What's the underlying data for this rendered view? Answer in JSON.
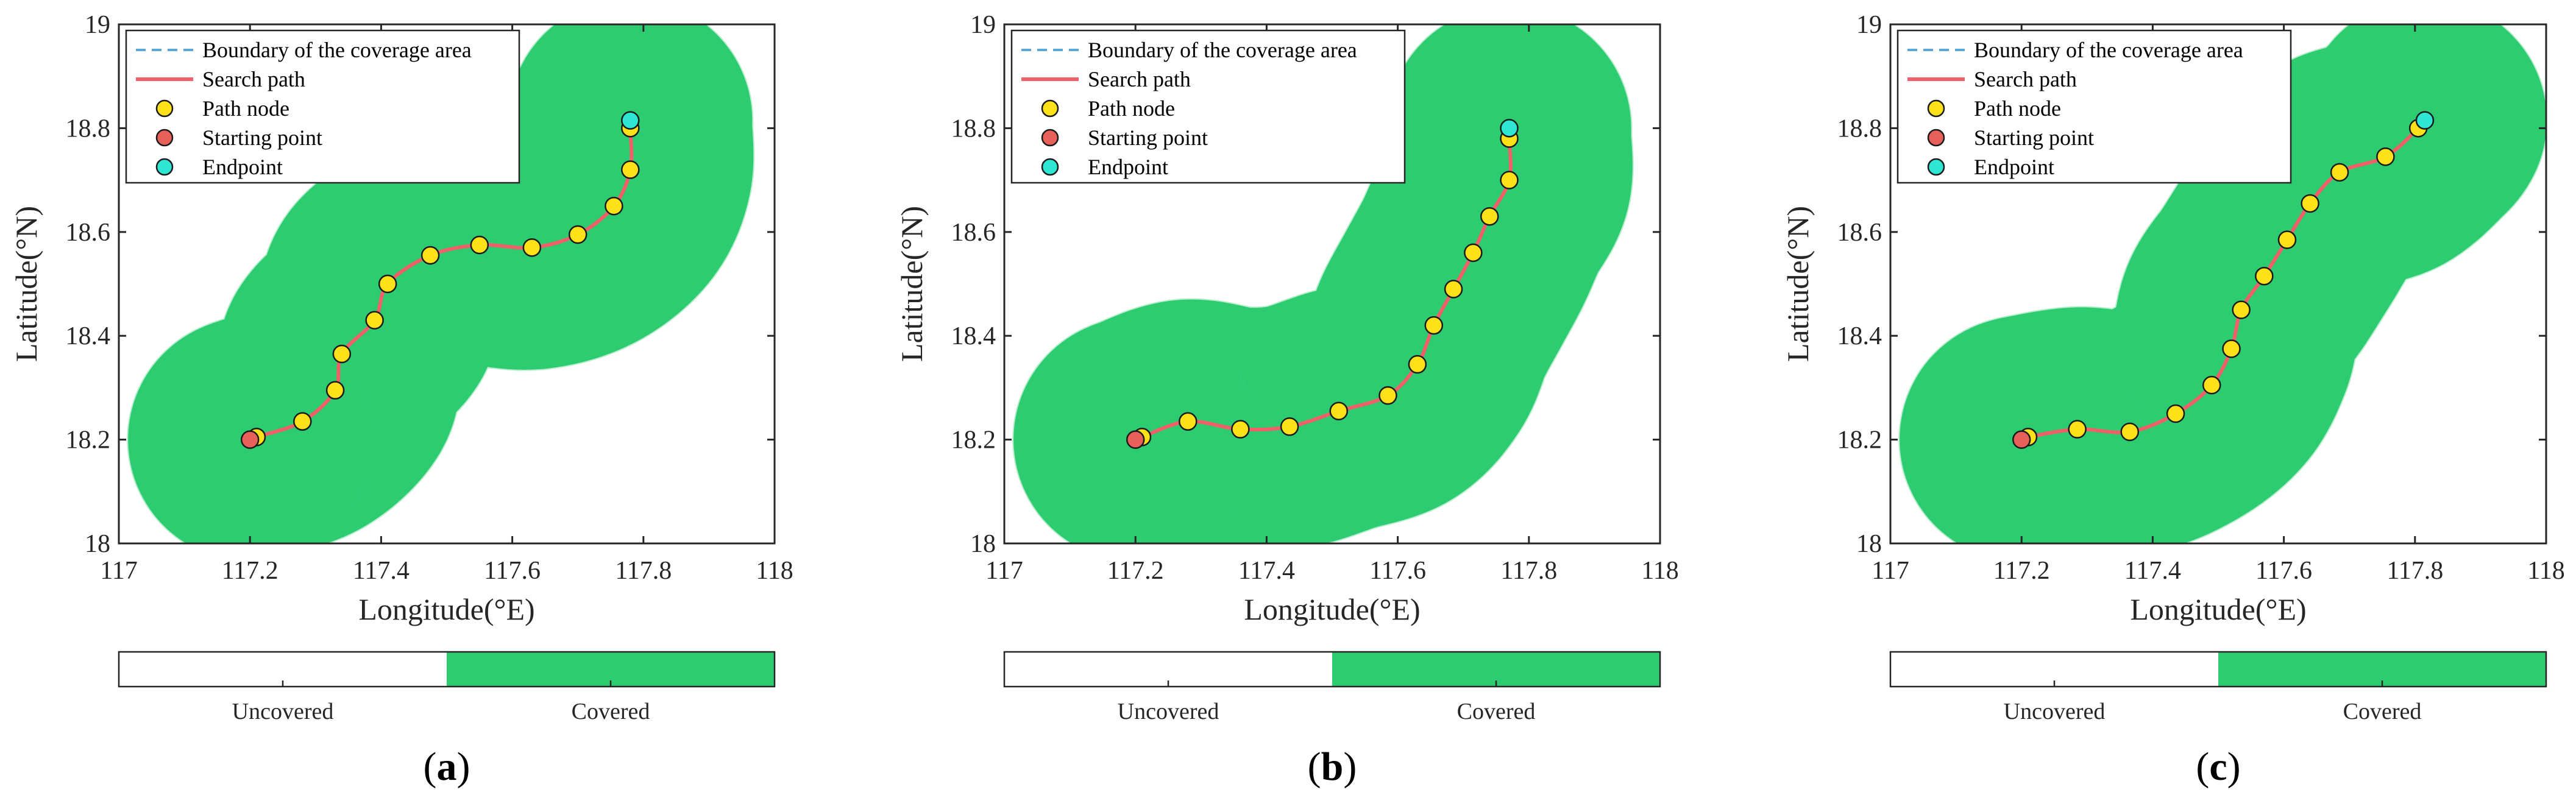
{
  "colors": {
    "covered": "#2ecc71",
    "uncovered": "#ffffff",
    "search_path": "#f0606a",
    "path_node": "#ffe11a",
    "starting_point": "#e8605a",
    "endpoint": "#2ee6d2",
    "boundary": "#5ba8d6"
  },
  "legend_labels": {
    "boundary": "Boundary of the coverage area",
    "search_path": "Search path",
    "path_node": "Path node",
    "starting_point": "Starting point",
    "endpoint": "Endpoint"
  },
  "colorbar_labels": {
    "uncovered": "Uncovered",
    "covered": "Covered"
  },
  "chart_data": [
    {
      "type": "scatter",
      "panel_label": "a",
      "xlabel": "Longitude(°E)",
      "ylabel": "Latitude(°N)",
      "xlim": [
        117,
        118
      ],
      "ylim": [
        18,
        19
      ],
      "xticks": [
        "117",
        "117.2",
        "117.4",
        "117.6",
        "117.8",
        "118"
      ],
      "yticks": [
        "18",
        "18.2",
        "18.4",
        "18.6",
        "18.8",
        "19"
      ],
      "legend_position": "top-left",
      "grid": false,
      "start": {
        "x": 117.2,
        "y": 18.2
      },
      "end": {
        "x": 117.78,
        "y": 18.815
      },
      "path_nodes": [
        {
          "x": 117.21,
          "y": 18.205
        },
        {
          "x": 117.28,
          "y": 18.235
        },
        {
          "x": 117.33,
          "y": 18.295
        },
        {
          "x": 117.34,
          "y": 18.365
        },
        {
          "x": 117.39,
          "y": 18.43
        },
        {
          "x": 117.41,
          "y": 18.5
        },
        {
          "x": 117.475,
          "y": 18.555
        },
        {
          "x": 117.55,
          "y": 18.575
        },
        {
          "x": 117.63,
          "y": 18.57
        },
        {
          "x": 117.7,
          "y": 18.595
        },
        {
          "x": 117.755,
          "y": 18.65
        },
        {
          "x": 117.78,
          "y": 18.72
        },
        {
          "x": 117.78,
          "y": 18.8
        }
      ]
    },
    {
      "type": "scatter",
      "panel_label": "b",
      "xlabel": "Longitude(°E)",
      "ylabel": "Latitude(°N)",
      "xlim": [
        117,
        118
      ],
      "ylim": [
        18,
        19
      ],
      "xticks": [
        "117",
        "117.2",
        "117.4",
        "117.6",
        "117.8",
        "118"
      ],
      "yticks": [
        "18",
        "18.2",
        "18.4",
        "18.6",
        "18.8",
        "19"
      ],
      "legend_position": "top-left",
      "grid": false,
      "start": {
        "x": 117.2,
        "y": 18.2
      },
      "end": {
        "x": 117.77,
        "y": 18.8
      },
      "path_nodes": [
        {
          "x": 117.21,
          "y": 18.205
        },
        {
          "x": 117.28,
          "y": 18.235
        },
        {
          "x": 117.36,
          "y": 18.22
        },
        {
          "x": 117.435,
          "y": 18.225
        },
        {
          "x": 117.51,
          "y": 18.255
        },
        {
          "x": 117.585,
          "y": 18.285
        },
        {
          "x": 117.63,
          "y": 18.345
        },
        {
          "x": 117.655,
          "y": 18.42
        },
        {
          "x": 117.685,
          "y": 18.49
        },
        {
          "x": 117.715,
          "y": 18.56
        },
        {
          "x": 117.74,
          "y": 18.63
        },
        {
          "x": 117.77,
          "y": 18.7
        },
        {
          "x": 117.77,
          "y": 18.78
        }
      ]
    },
    {
      "type": "scatter",
      "panel_label": "c",
      "xlabel": "Longitude(°E)",
      "ylabel": "Latitude(°N)",
      "xlim": [
        117,
        118
      ],
      "ylim": [
        18,
        19
      ],
      "xticks": [
        "117",
        "117.2",
        "117.4",
        "117.6",
        "117.8",
        "118"
      ],
      "yticks": [
        "18",
        "18.2",
        "18.4",
        "18.6",
        "18.8",
        "19"
      ],
      "legend_position": "top-left",
      "grid": false,
      "start": {
        "x": 117.2,
        "y": 18.2
      },
      "end": {
        "x": 117.815,
        "y": 18.815
      },
      "path_nodes": [
        {
          "x": 117.21,
          "y": 18.205
        },
        {
          "x": 117.285,
          "y": 18.22
        },
        {
          "x": 117.365,
          "y": 18.215
        },
        {
          "x": 117.435,
          "y": 18.25
        },
        {
          "x": 117.49,
          "y": 18.305
        },
        {
          "x": 117.52,
          "y": 18.375
        },
        {
          "x": 117.535,
          "y": 18.45
        },
        {
          "x": 117.57,
          "y": 18.515
        },
        {
          "x": 117.605,
          "y": 18.585
        },
        {
          "x": 117.64,
          "y": 18.655
        },
        {
          "x": 117.685,
          "y": 18.715
        },
        {
          "x": 117.755,
          "y": 18.745
        },
        {
          "x": 117.805,
          "y": 18.8
        }
      ]
    }
  ]
}
